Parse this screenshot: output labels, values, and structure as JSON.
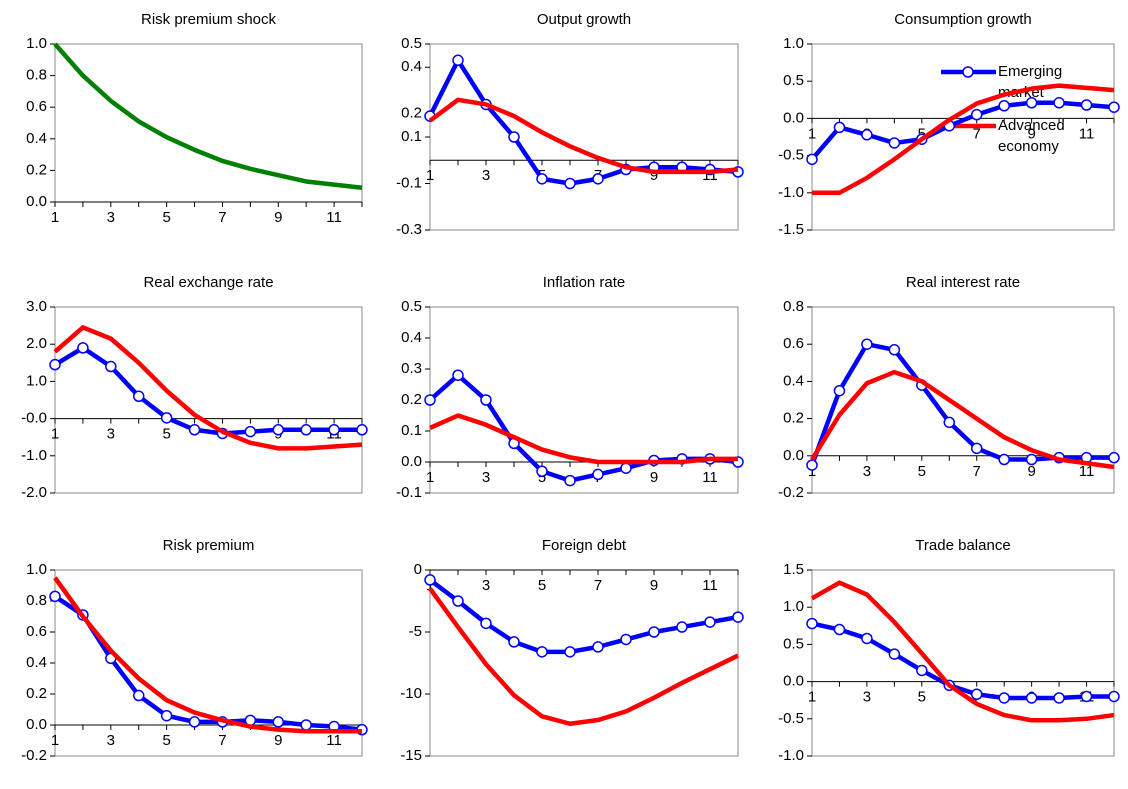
{
  "chart_data": [
    {
      "type": "line",
      "title": "Risk premium shock",
      "x": [
        1,
        2,
        3,
        4,
        5,
        6,
        7,
        8,
        9,
        10,
        11,
        12
      ],
      "xticks": [
        1,
        3,
        5,
        7,
        9,
        11
      ],
      "ylim": [
        0,
        1
      ],
      "yticks": [
        {
          "value": 0,
          "label": "0.0"
        },
        0.2,
        0.4,
        0.6,
        0.8,
        {
          "value": 1,
          "label": "1.0"
        }
      ],
      "series": [
        {
          "color": "#008000",
          "values": [
            1,
            0.8,
            0.64,
            0.51,
            0.41,
            0.33,
            0.26,
            0.21,
            0.17,
            0.13,
            0.11,
            0.09
          ]
        }
      ]
    },
    {
      "type": "line",
      "title": "Output growth",
      "x": [
        1,
        2,
        3,
        4,
        5,
        6,
        7,
        8,
        9,
        10,
        11,
        12
      ],
      "xticks": [
        1,
        3,
        5,
        7,
        9,
        11
      ],
      "ylim": [
        -0.3,
        0.5
      ],
      "yticks": [
        -0.3,
        -0.1,
        0.1,
        0.2,
        0.4,
        0.5
      ],
      "legend": "upper right",
      "series": [
        {
          "name": "Emerging market",
          "color": "#0000ff",
          "markers": true,
          "values": [
            0.19,
            0.43,
            0.24,
            0.1,
            -0.08,
            -0.1,
            -0.08,
            -0.04,
            -0.03,
            -0.03,
            -0.04,
            -0.05
          ]
        },
        {
          "name": "Advanced economy",
          "color": "#ff0000",
          "values": [
            0.17,
            0.26,
            0.24,
            0.19,
            0.12,
            0.06,
            0.01,
            -0.03,
            -0.05,
            -0.05,
            -0.05,
            -0.04
          ]
        }
      ]
    },
    {
      "type": "line",
      "title": "Consumption growth",
      "x": [
        1,
        2,
        3,
        4,
        5,
        6,
        7,
        8,
        9,
        10,
        11,
        12
      ],
      "xticks": [
        1,
        3,
        5,
        7,
        9,
        11
      ],
      "ylim": [
        -1.5,
        1
      ],
      "yticks": [
        -1.5,
        {
          "value": -1,
          "label": "-1.0"
        },
        -0.5,
        {
          "value": 0,
          "label": "0.0"
        },
        0.5,
        {
          "value": 1,
          "label": "1.0"
        }
      ],
      "series": [
        {
          "color": "#0000ff",
          "markers": true,
          "values": [
            -0.55,
            -0.12,
            -0.22,
            -0.33,
            -0.28,
            -0.1,
            0.05,
            0.17,
            0.21,
            0.21,
            0.18,
            0.15
          ]
        },
        {
          "color": "#ff0000",
          "values": [
            -1,
            -1,
            -0.8,
            -0.55,
            -0.28,
            -0.02,
            0.2,
            0.32,
            0.4,
            0.44,
            0.41,
            0.38
          ]
        }
      ]
    },
    {
      "type": "line",
      "title": "Real exchange rate",
      "x": [
        1,
        2,
        3,
        4,
        5,
        6,
        7,
        8,
        9,
        10,
        11,
        12
      ],
      "xticks": [
        1,
        3,
        5,
        7,
        9,
        11
      ],
      "ylim": [
        -2,
        3
      ],
      "yticks": [
        {
          "value": -2,
          "label": "-2.0"
        },
        {
          "value": -1,
          "label": "-1.0"
        },
        {
          "value": 0,
          "label": "-0.0"
        },
        {
          "value": 1,
          "label": "1.0"
        },
        {
          "value": 2,
          "label": "2.0"
        },
        {
          "value": 3,
          "label": "3.0"
        }
      ],
      "series": [
        {
          "color": "#0000ff",
          "markers": true,
          "values": [
            1.45,
            1.9,
            1.4,
            0.6,
            0.02,
            -0.3,
            -0.4,
            -0.35,
            -0.3,
            -0.3,
            -0.3,
            -0.3
          ]
        },
        {
          "color": "#ff0000",
          "values": [
            1.8,
            2.45,
            2.15,
            1.5,
            0.75,
            0.1,
            -0.35,
            -0.65,
            -0.8,
            -0.8,
            -0.75,
            -0.7
          ]
        }
      ]
    },
    {
      "type": "line",
      "title": "Inflation rate",
      "x": [
        1,
        2,
        3,
        4,
        5,
        6,
        7,
        8,
        9,
        10,
        11,
        12
      ],
      "xticks": [
        1,
        3,
        5,
        7,
        9,
        11
      ],
      "ylim": [
        -0.1,
        0.5
      ],
      "yticks": [
        -0.1,
        {
          "value": 0,
          "label": "0.0"
        },
        0.1,
        0.2,
        0.3,
        0.4,
        0.5
      ],
      "series": [
        {
          "color": "#0000ff",
          "markers": true,
          "values": [
            0.2,
            0.28,
            0.2,
            0.06,
            -0.03,
            -0.06,
            -0.04,
            -0.02,
            0.005,
            0.01,
            0.01,
            0
          ]
        },
        {
          "color": "#ff0000",
          "values": [
            0.11,
            0.15,
            0.12,
            0.08,
            0.04,
            0.015,
            0,
            0,
            0,
            0,
            0.01,
            0.01
          ]
        }
      ]
    },
    {
      "type": "line",
      "title": "Real interest rate",
      "x": [
        1,
        2,
        3,
        4,
        5,
        6,
        7,
        8,
        9,
        10,
        11,
        12
      ],
      "xticks": [
        1,
        3,
        5,
        7,
        9,
        11
      ],
      "ylim": [
        -0.2,
        0.8
      ],
      "yticks": [
        -0.2,
        {
          "value": 0,
          "label": "0.0"
        },
        0.2,
        0.4,
        0.6,
        0.8
      ],
      "series": [
        {
          "color": "#0000ff",
          "markers": true,
          "values": [
            -0.05,
            0.35,
            0.6,
            0.57,
            0.38,
            0.18,
            0.04,
            -0.02,
            -0.02,
            -0.01,
            -0.01,
            -0.01
          ]
        },
        {
          "color": "#ff0000",
          "values": [
            -0.02,
            0.22,
            0.39,
            0.45,
            0.4,
            0.3,
            0.2,
            0.1,
            0.03,
            -0.02,
            -0.04,
            -0.06
          ]
        }
      ]
    },
    {
      "type": "line",
      "title": "Risk premium",
      "x": [
        1,
        2,
        3,
        4,
        5,
        6,
        7,
        8,
        9,
        10,
        11,
        12
      ],
      "xticks": [
        1,
        3,
        5,
        7,
        9,
        11
      ],
      "ylim": [
        -0.2,
        1
      ],
      "yticks": [
        -0.2,
        {
          "value": 0,
          "label": "0.0"
        },
        0.2,
        0.4,
        0.6,
        0.8,
        {
          "value": 1,
          "label": "1.0"
        }
      ],
      "series": [
        {
          "color": "#0000ff",
          "markers": true,
          "values": [
            0.83,
            0.71,
            0.43,
            0.19,
            0.06,
            0.02,
            0.02,
            0.03,
            0.02,
            0,
            -0.01,
            -0.03
          ]
        },
        {
          "color": "#ff0000",
          "values": [
            0.95,
            0.7,
            0.48,
            0.3,
            0.16,
            0.08,
            0.03,
            -0.01,
            -0.03,
            -0.04,
            -0.04,
            -0.04
          ]
        }
      ]
    },
    {
      "type": "line",
      "title": "Foreign debt",
      "x": [
        1,
        2,
        3,
        4,
        5,
        6,
        7,
        8,
        9,
        10,
        11,
        12
      ],
      "xticks": [
        1,
        3,
        5,
        7,
        9,
        11
      ],
      "ylim": [
        -15,
        0
      ],
      "yticks": [
        -15,
        -10,
        -5,
        0
      ],
      "series": [
        {
          "color": "#0000ff",
          "markers": true,
          "values": [
            -0.8,
            -2.5,
            -4.3,
            -5.8,
            -6.6,
            -6.6,
            -6.2,
            -5.6,
            -5,
            -4.6,
            -4.2,
            -3.8
          ]
        },
        {
          "color": "#ff0000",
          "values": [
            -1.5,
            -4.6,
            -7.6,
            -10.1,
            -11.8,
            -12.4,
            -12.1,
            -11.4,
            -10.3,
            -9.1,
            -8,
            -6.9
          ]
        }
      ]
    },
    {
      "type": "line",
      "title": "Trade balance",
      "x": [
        1,
        2,
        3,
        4,
        5,
        6,
        7,
        8,
        9,
        10,
        11,
        12
      ],
      "xticks": [
        1,
        3,
        5,
        7,
        9,
        11
      ],
      "ylim": [
        -1,
        1.5
      ],
      "yticks": [
        {
          "value": -1,
          "label": "-1.0"
        },
        -0.5,
        {
          "value": 0,
          "label": "0.0"
        },
        0.5,
        {
          "value": 1,
          "label": "1.0"
        },
        1.5
      ],
      "series": [
        {
          "color": "#0000ff",
          "markers": true,
          "values": [
            0.78,
            0.7,
            0.58,
            0.37,
            0.15,
            -0.05,
            -0.17,
            -0.22,
            -0.22,
            -0.22,
            -0.2,
            -0.2
          ]
        },
        {
          "color": "#ff0000",
          "values": [
            1.12,
            1.33,
            1.17,
            0.8,
            0.38,
            -0.05,
            -0.3,
            -0.45,
            -0.52,
            -0.52,
            -0.5,
            -0.45
          ]
        }
      ]
    }
  ]
}
